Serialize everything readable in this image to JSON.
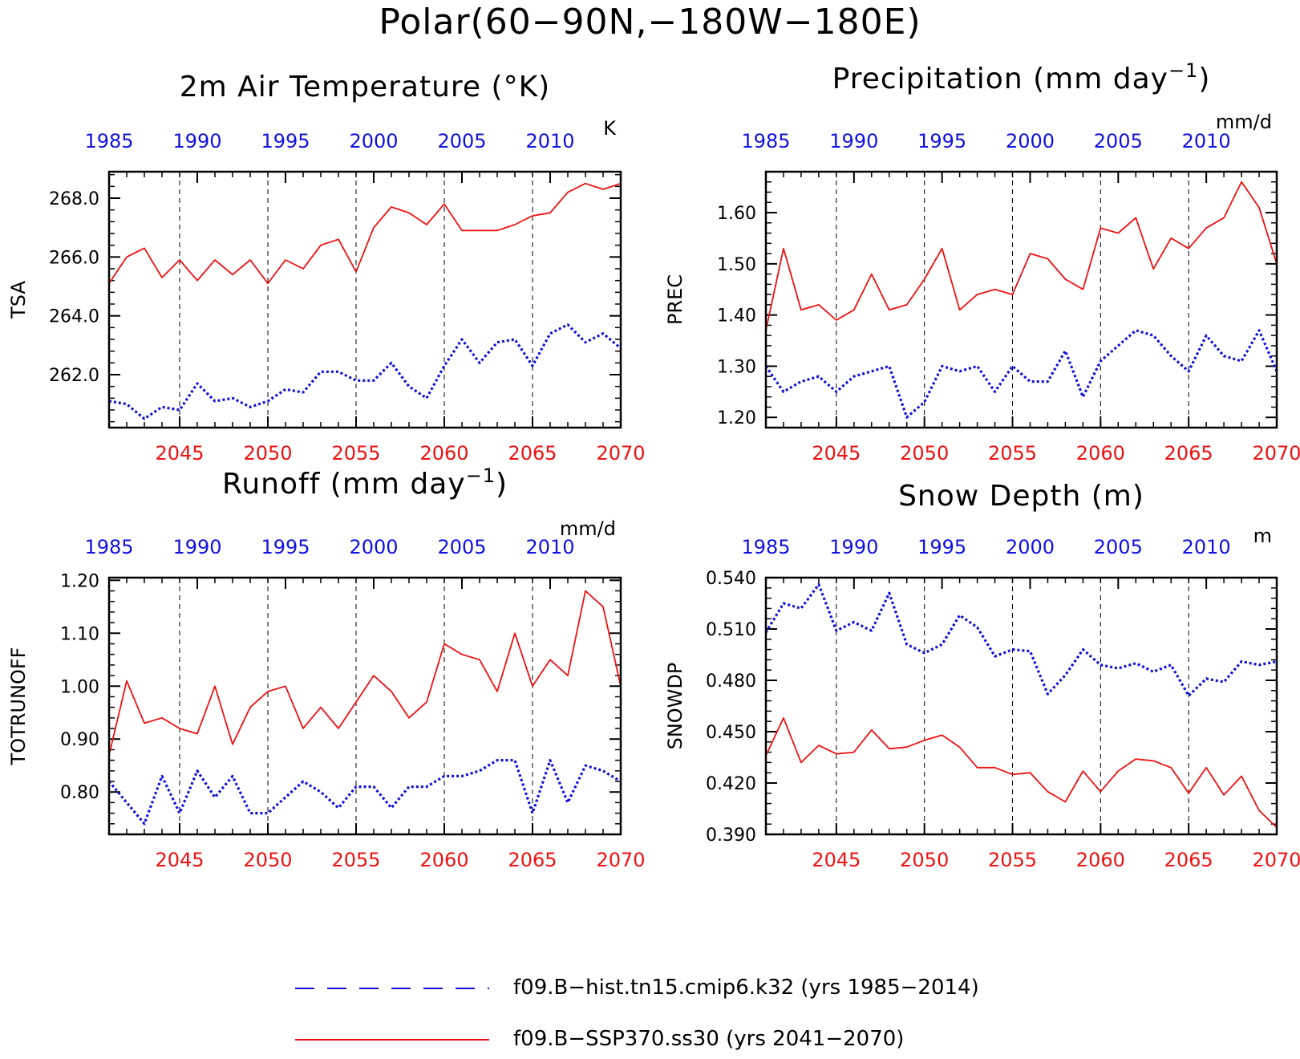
{
  "title": "Polar(60−90N,−180W−180E)",
  "colors": {
    "hist": "#1010e0",
    "ssp": "#ee1111",
    "axis": "#000000"
  },
  "legend": [
    {
      "label": "f09.B−hist.tn15.cmip6.k32 (yrs 1985−2014)",
      "style": "dashed",
      "color": "#1010e0"
    },
    {
      "label": "f09.B−SSP370.ss30 (yrs 2041−2070)",
      "style": "solid",
      "color": "#ee1111"
    }
  ],
  "chart_data": [
    {
      "type": "line",
      "title": "2m Air Temperature (°K)",
      "ylabel": "TSA",
      "units": "K",
      "ylim": [
        260.2,
        268.9
      ],
      "yticks": [
        262,
        264,
        266,
        268
      ],
      "ytick_labels": [
        "262.0",
        "264.0",
        "266.0",
        "268.0"
      ],
      "top_axis": {
        "ticks": [
          1985,
          1990,
          1995,
          2000,
          2005,
          2010
        ],
        "xlim": [
          1985,
          2014
        ]
      },
      "bottom_axis": {
        "ticks": [
          2045,
          2050,
          2055,
          2060,
          2065,
          2070
        ],
        "xlim": [
          2041,
          2070
        ]
      },
      "series": [
        {
          "name": "f09.B−hist.tn15.cmip6.k32",
          "x_axis": "top",
          "x": [
            1985,
            1986,
            1987,
            1988,
            1989,
            1990,
            1991,
            1992,
            1993,
            1994,
            1995,
            1996,
            1997,
            1998,
            1999,
            2000,
            2001,
            2002,
            2003,
            2004,
            2005,
            2006,
            2007,
            2008,
            2009,
            2010,
            2011,
            2012,
            2013,
            2014
          ],
          "values": [
            261.1,
            261.0,
            260.5,
            260.9,
            260.8,
            261.7,
            261.1,
            261.2,
            260.9,
            261.1,
            261.5,
            261.4,
            262.1,
            262.1,
            261.8,
            261.8,
            262.4,
            261.6,
            261.2,
            262.3,
            263.2,
            262.4,
            263.1,
            263.2,
            262.3,
            263.4,
            263.7,
            263.1,
            263.4,
            262.9
          ]
        },
        {
          "name": "f09.B−SSP370.ss30",
          "x_axis": "bottom",
          "x": [
            2041,
            2042,
            2043,
            2044,
            2045,
            2046,
            2047,
            2048,
            2049,
            2050,
            2051,
            2052,
            2053,
            2054,
            2055,
            2056,
            2057,
            2058,
            2059,
            2060,
            2061,
            2062,
            2063,
            2064,
            2065,
            2066,
            2067,
            2068,
            2069,
            2070
          ],
          "values": [
            265.1,
            266.0,
            266.3,
            265.3,
            265.9,
            265.2,
            265.9,
            265.4,
            265.9,
            265.1,
            265.9,
            265.6,
            266.4,
            266.6,
            265.5,
            267.0,
            267.7,
            267.5,
            267.1,
            267.8,
            266.9,
            266.9,
            266.9,
            267.1,
            267.4,
            267.5,
            268.2,
            268.5,
            268.3,
            268.5
          ]
        }
      ]
    },
    {
      "type": "line",
      "title": "Precipitation (mm day",
      "title_sup": "−1",
      "title_end": ")",
      "ylabel": "PREC",
      "units": "mm/d",
      "ylim": [
        1.18,
        1.68
      ],
      "yticks": [
        1.2,
        1.3,
        1.4,
        1.5,
        1.6
      ],
      "ytick_labels": [
        "1.20",
        "1.30",
        "1.40",
        "1.50",
        "1.60"
      ],
      "top_axis": {
        "ticks": [
          1985,
          1990,
          1995,
          2000,
          2005,
          2010
        ],
        "xlim": [
          1985,
          2014
        ]
      },
      "bottom_axis": {
        "ticks": [
          2045,
          2050,
          2055,
          2060,
          2065,
          2070
        ],
        "xlim": [
          2041,
          2070
        ]
      },
      "series": [
        {
          "name": "f09.B−hist.tn15.cmip6.k32",
          "x_axis": "top",
          "x": [
            1985,
            1986,
            1987,
            1988,
            1989,
            1990,
            1991,
            1992,
            1993,
            1994,
            1995,
            1996,
            1997,
            1998,
            1999,
            2000,
            2001,
            2002,
            2003,
            2004,
            2005,
            2006,
            2007,
            2008,
            2009,
            2010,
            2011,
            2012,
            2013,
            2014
          ],
          "values": [
            1.3,
            1.25,
            1.27,
            1.28,
            1.25,
            1.28,
            1.29,
            1.3,
            1.2,
            1.23,
            1.3,
            1.29,
            1.3,
            1.25,
            1.3,
            1.27,
            1.27,
            1.33,
            1.24,
            1.31,
            1.34,
            1.37,
            1.36,
            1.32,
            1.29,
            1.36,
            1.32,
            1.31,
            1.37,
            1.29
          ]
        },
        {
          "name": "f09.B−SSP370.ss30",
          "x_axis": "bottom",
          "x": [
            2041,
            2042,
            2043,
            2044,
            2045,
            2046,
            2047,
            2048,
            2049,
            2050,
            2051,
            2052,
            2053,
            2054,
            2055,
            2056,
            2057,
            2058,
            2059,
            2060,
            2061,
            2062,
            2063,
            2064,
            2065,
            2066,
            2067,
            2068,
            2069,
            2070
          ],
          "values": [
            1.37,
            1.53,
            1.41,
            1.42,
            1.39,
            1.41,
            1.48,
            1.41,
            1.42,
            1.47,
            1.53,
            1.41,
            1.44,
            1.45,
            1.44,
            1.52,
            1.51,
            1.47,
            1.45,
            1.57,
            1.56,
            1.59,
            1.49,
            1.55,
            1.53,
            1.57,
            1.59,
            1.66,
            1.61,
            1.5
          ]
        }
      ]
    },
    {
      "type": "line",
      "title": "Runoff (mm day",
      "title_sup": "−1",
      "title_end": ")",
      "ylabel": "TOTRUNOFF",
      "units": "mm/d",
      "ylim": [
        0.72,
        1.205
      ],
      "yticks": [
        0.8,
        0.9,
        1.0,
        1.1,
        1.2
      ],
      "ytick_labels": [
        "0.80",
        "0.90",
        "1.00",
        "1.10",
        "1.20"
      ],
      "top_axis": {
        "ticks": [
          1985,
          1990,
          1995,
          2000,
          2005,
          2010
        ],
        "xlim": [
          1985,
          2014
        ]
      },
      "bottom_axis": {
        "ticks": [
          2045,
          2050,
          2055,
          2060,
          2065,
          2070
        ],
        "xlim": [
          2041,
          2070
        ]
      },
      "series": [
        {
          "name": "f09.B−hist.tn15.cmip6.k32",
          "x_axis": "top",
          "x": [
            1985,
            1986,
            1987,
            1988,
            1989,
            1990,
            1991,
            1992,
            1993,
            1994,
            1995,
            1996,
            1997,
            1998,
            1999,
            2000,
            2001,
            2002,
            2003,
            2004,
            2005,
            2006,
            2007,
            2008,
            2009,
            2010,
            2011,
            2012,
            2013,
            2014
          ],
          "values": [
            0.82,
            0.78,
            0.74,
            0.83,
            0.76,
            0.84,
            0.79,
            0.83,
            0.76,
            0.76,
            0.79,
            0.82,
            0.8,
            0.77,
            0.81,
            0.81,
            0.77,
            0.81,
            0.81,
            0.83,
            0.83,
            0.84,
            0.86,
            0.86,
            0.76,
            0.86,
            0.78,
            0.85,
            0.84,
            0.82
          ]
        },
        {
          "name": "f09.B−SSP370.ss30",
          "x_axis": "bottom",
          "x": [
            2041,
            2042,
            2043,
            2044,
            2045,
            2046,
            2047,
            2048,
            2049,
            2050,
            2051,
            2052,
            2053,
            2054,
            2055,
            2056,
            2057,
            2058,
            2059,
            2060,
            2061,
            2062,
            2063,
            2064,
            2065,
            2066,
            2067,
            2068,
            2069,
            2070
          ],
          "values": [
            0.87,
            1.01,
            0.93,
            0.94,
            0.92,
            0.91,
            1.0,
            0.89,
            0.96,
            0.99,
            1.0,
            0.92,
            0.96,
            0.92,
            0.97,
            1.02,
            0.99,
            0.94,
            0.97,
            1.08,
            1.06,
            1.05,
            0.99,
            1.1,
            1.0,
            1.05,
            1.02,
            1.18,
            1.15,
            1.0
          ]
        }
      ]
    },
    {
      "type": "line",
      "title": "Snow Depth (m)",
      "ylabel": "SNOWDP",
      "units": "m",
      "ylim": [
        0.39,
        0.54
      ],
      "yticks": [
        0.39,
        0.42,
        0.45,
        0.48,
        0.51,
        0.54
      ],
      "ytick_labels": [
        "0.390",
        "0.420",
        "0.450",
        "0.480",
        "0.510",
        "0.540"
      ],
      "top_axis": {
        "ticks": [
          1985,
          1990,
          1995,
          2000,
          2005,
          2010
        ],
        "xlim": [
          1985,
          2014
        ]
      },
      "bottom_axis": {
        "ticks": [
          2045,
          2050,
          2055,
          2060,
          2065,
          2070
        ],
        "xlim": [
          2041,
          2070
        ]
      },
      "series": [
        {
          "name": "f09.B−hist.tn15.cmip6.k32",
          "x_axis": "top",
          "x": [
            1985,
            1986,
            1987,
            1988,
            1989,
            1990,
            1991,
            1992,
            1993,
            1994,
            1995,
            1996,
            1997,
            1998,
            1999,
            2000,
            2001,
            2002,
            2003,
            2004,
            2005,
            2006,
            2007,
            2008,
            2009,
            2010,
            2011,
            2012,
            2013,
            2014
          ],
          "values": [
            0.508,
            0.525,
            0.522,
            0.536,
            0.509,
            0.514,
            0.509,
            0.531,
            0.501,
            0.496,
            0.501,
            0.518,
            0.511,
            0.494,
            0.498,
            0.497,
            0.472,
            0.483,
            0.498,
            0.489,
            0.487,
            0.49,
            0.485,
            0.489,
            0.471,
            0.481,
            0.479,
            0.491,
            0.489,
            0.491
          ]
        },
        {
          "name": "f09.B−SSP370.ss30",
          "x_axis": "bottom",
          "x": [
            2041,
            2042,
            2043,
            2044,
            2045,
            2046,
            2047,
            2048,
            2049,
            2050,
            2051,
            2052,
            2053,
            2054,
            2055,
            2056,
            2057,
            2058,
            2059,
            2060,
            2061,
            2062,
            2063,
            2064,
            2065,
            2066,
            2067,
            2068,
            2069,
            2070
          ],
          "values": [
            0.436,
            0.458,
            0.432,
            0.442,
            0.437,
            0.438,
            0.451,
            0.44,
            0.441,
            0.445,
            0.448,
            0.441,
            0.429,
            0.429,
            0.425,
            0.426,
            0.415,
            0.409,
            0.427,
            0.415,
            0.427,
            0.434,
            0.433,
            0.429,
            0.414,
            0.429,
            0.413,
            0.424,
            0.404,
            0.394
          ]
        }
      ]
    }
  ]
}
